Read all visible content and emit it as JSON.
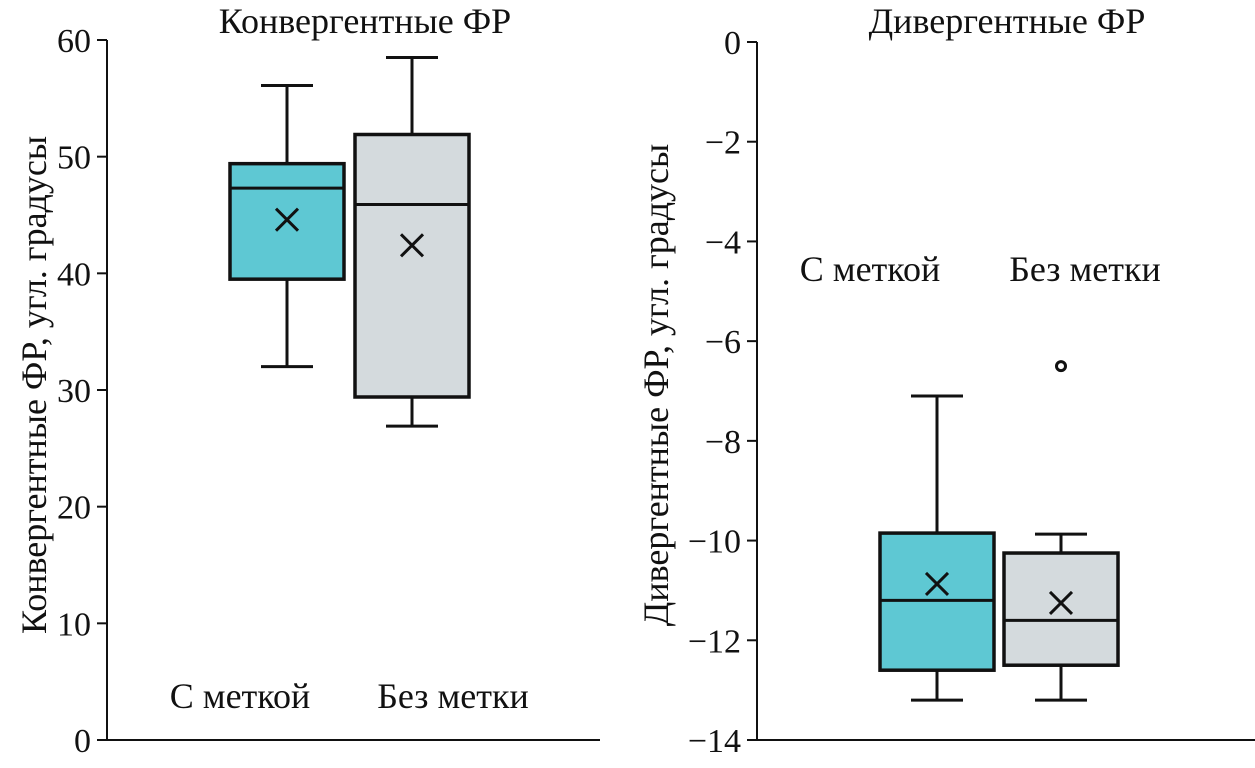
{
  "chart_data": [
    {
      "type": "box",
      "title": "Конвергентные ФР",
      "ylabel": "Конвергентные ФР, угл. градусы",
      "ylim": [
        0,
        60
      ],
      "yticks": [
        "0",
        "10",
        "20",
        "30",
        "40",
        "50",
        "60"
      ],
      "categories": [
        "С меткой",
        "Без метки"
      ],
      "boxes": [
        {
          "category": "С меткой",
          "whisker_low": 32.0,
          "q1": 39.5,
          "median": 47.3,
          "q3": 49.4,
          "whisker_high": 56.1,
          "mean": 44.6,
          "outliers": [],
          "color": "#5ec8d3"
        },
        {
          "category": "Без метки",
          "whisker_low": 26.9,
          "q1": 29.4,
          "median": 45.9,
          "q3": 51.9,
          "whisker_high": 58.5,
          "mean": 42.4,
          "outliers": [],
          "color": "#d4dadd"
        }
      ],
      "grid": false
    },
    {
      "type": "box",
      "title": "Дивергентные ФР",
      "ylabel": "Дивергентные ФР, угл. градусы",
      "ylim": [
        -14,
        0
      ],
      "yticks": [
        "−14",
        "−12",
        "−10",
        "−8",
        "−6",
        "−4",
        "−2",
        "0"
      ],
      "categories": [
        "С меткой",
        "Без метки"
      ],
      "boxes": [
        {
          "category": "С меткой",
          "whisker_low": -13.2,
          "q1": -12.6,
          "median": -11.2,
          "q3": -9.85,
          "whisker_high": -7.1,
          "mean": -10.87,
          "outliers": [],
          "color": "#5ec8d3"
        },
        {
          "category": "Без метки",
          "whisker_low": -13.2,
          "q1": -12.5,
          "median": -11.6,
          "q3": -10.25,
          "whisker_high": -9.87,
          "mean": -11.25,
          "outliers": [
            -6.5
          ],
          "color": "#d4dadd"
        }
      ],
      "grid": false
    }
  ]
}
